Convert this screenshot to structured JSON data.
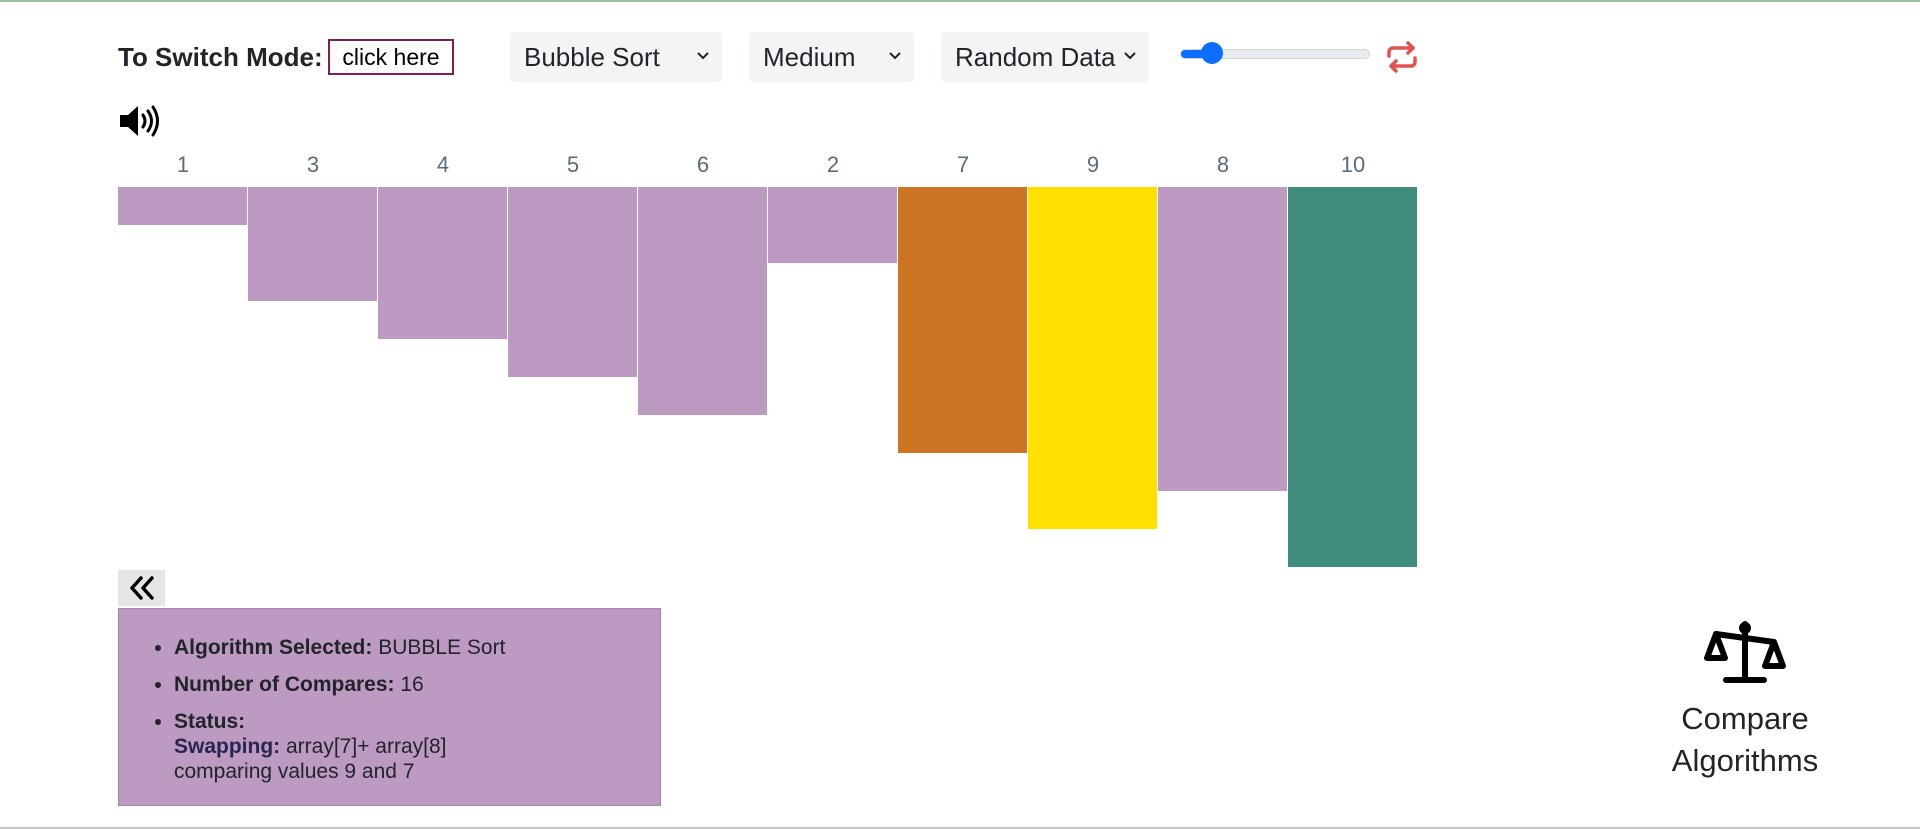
{
  "header": {
    "mode_label": "To Switch Mode:",
    "mode_button": "click here",
    "algorithm_select": "Bubble Sort",
    "speed_select": "Medium",
    "data_select": "Random Data",
    "slider_value": 0.17
  },
  "bars": [
    {
      "label": "1",
      "value": 1,
      "color": "#bc9ac2"
    },
    {
      "label": "3",
      "value": 3,
      "color": "#bc9ac2"
    },
    {
      "label": "4",
      "value": 4,
      "color": "#bc9ac2"
    },
    {
      "label": "5",
      "value": 5,
      "color": "#bc9ac2"
    },
    {
      "label": "6",
      "value": 6,
      "color": "#bc9ac2"
    },
    {
      "label": "2",
      "value": 2,
      "color": "#bc9ac2"
    },
    {
      "label": "7",
      "value": 7,
      "color": "#cc7422"
    },
    {
      "label": "9",
      "value": 9,
      "color": "#ffe000"
    },
    {
      "label": "8",
      "value": 8,
      "color": "#bc9ac2"
    },
    {
      "label": "10",
      "value": 10,
      "color": "#408c7c"
    }
  ],
  "info": {
    "algorithm_key": "Algorithm Selected:",
    "algorithm_value": " BUBBLE Sort",
    "compares_key": "Number of Compares:",
    "compares_value": " 16",
    "status_key": "Status:",
    "swapping_key": "Swapping:",
    "swapping_value": " array[7]+ array[8]",
    "comparing_text": "comparing values 9 and 7"
  },
  "compare": {
    "line1": "Compare",
    "line2": "Algorithms"
  },
  "colors": {
    "default_bar": "#bc9ac2",
    "comparing": "#cc7422",
    "swapping": "#ffe000",
    "sorted": "#408c7c",
    "accent": "#0d6efd",
    "repeat_icon": "#e05353"
  }
}
